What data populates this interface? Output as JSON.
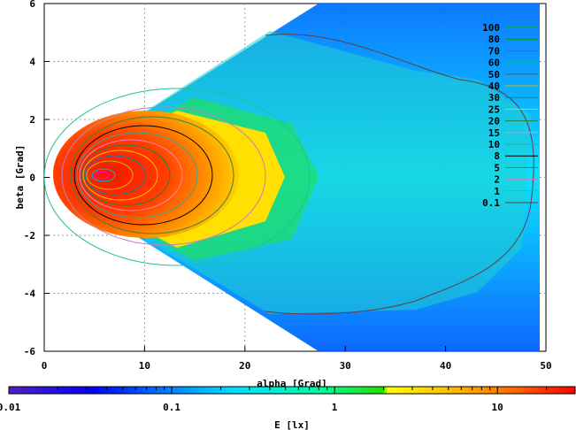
{
  "chart_data": {
    "type": "heatmap",
    "xlabel": "alpha [Grad]",
    "ylabel": "beta [Grad]",
    "colorbar_label": "E [lx]",
    "xlim": [
      0,
      50
    ],
    "ylim": [
      6,
      -6
    ],
    "x_ticks": [
      "0",
      "10",
      "20",
      "30",
      "40",
      "50"
    ],
    "y_ticks": [
      "-6",
      "-4",
      "-2",
      "0",
      "2",
      "4",
      "6"
    ],
    "colorbar_ticks": [
      "0.01",
      "0.1",
      "1",
      "10"
    ],
    "colorbar_range": [
      0.01,
      30
    ],
    "grid": true,
    "legend_position": "top-right",
    "contours": [
      {
        "label": "100",
        "color": "#00c000"
      },
      {
        "label": "80",
        "color": "#00a000"
      },
      {
        "label": "70",
        "color": "#ff00ff"
      },
      {
        "label": "60",
        "color": "#00c0c0"
      },
      {
        "label": "50",
        "color": "#c04000"
      },
      {
        "label": "40",
        "color": "#c0c000"
      },
      {
        "label": "30",
        "color": "#0080c0"
      },
      {
        "label": "25",
        "color": "#ffc000"
      },
      {
        "label": "20",
        "color": "#208040"
      },
      {
        "label": "15",
        "color": "#ff80c0"
      },
      {
        "label": "10",
        "color": "#40a0a0"
      },
      {
        "label": "8",
        "color": "#000000"
      },
      {
        "label": "5",
        "color": "#408040"
      },
      {
        "label": "2",
        "color": "#c080c0"
      },
      {
        "label": "1",
        "color": "#20c0a0"
      },
      {
        "label": "0.1",
        "color": "#604040"
      }
    ]
  }
}
